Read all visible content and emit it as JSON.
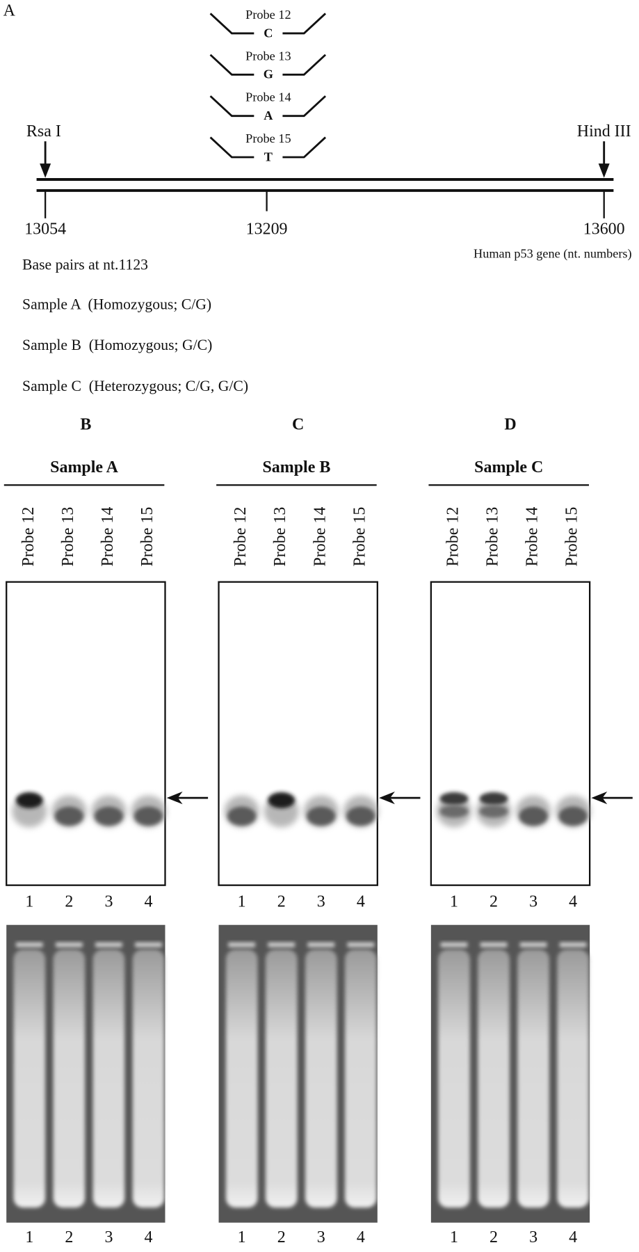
{
  "panel_a": {
    "label": "A",
    "probes": [
      {
        "name": "Probe 12",
        "base": "C"
      },
      {
        "name": "Probe 13",
        "base": "G"
      },
      {
        "name": "Probe 14",
        "base": "A"
      },
      {
        "name": "Probe 15",
        "base": "T"
      }
    ],
    "sites": [
      "Rsa I",
      "Hind III"
    ],
    "positions": [
      "13054",
      "13209",
      "13600"
    ],
    "gene_label": "Human p53 gene (nt. numbers)",
    "base_pairs_title": "Base pairs at nt.1123",
    "samples": [
      "Sample A  (Homozygous; C/G)",
      "Sample B  (Homozygous; G/C)",
      "Sample C  (Heterozygous; C/G, G/C)"
    ]
  },
  "gel_panels": [
    {
      "label": "B",
      "sample": "Sample A",
      "lanes": [
        "Probe 12",
        "Probe 13",
        "Probe 14",
        "Probe 15"
      ],
      "lane_numbers": [
        "1",
        "2",
        "3",
        "4"
      ]
    },
    {
      "label": "C",
      "sample": "Sample B",
      "lanes": [
        "Probe 12",
        "Probe 13",
        "Probe 14",
        "Probe 15"
      ],
      "lane_numbers": [
        "1",
        "2",
        "3",
        "4"
      ]
    },
    {
      "label": "D",
      "sample": "Sample C",
      "lanes": [
        "Probe 12",
        "Probe 13",
        "Probe 14",
        "Probe 15"
      ],
      "lane_numbers": [
        "1",
        "2",
        "3",
        "4"
      ]
    }
  ]
}
